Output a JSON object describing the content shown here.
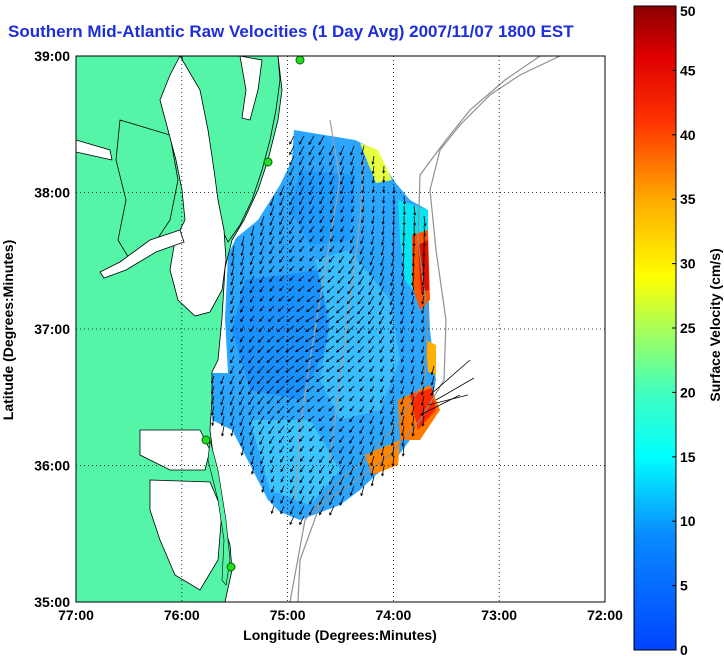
{
  "title": "Southern Mid-Atlantic Raw Velocities (1 Day Avg) 2007/11/07 1800 EST",
  "map": {
    "xlabel": "Longitude (Degrees:Minutes)",
    "ylabel": "Latitude (Degrees:Minutes)",
    "x_ticks": [
      "77:00",
      "76:00",
      "75:00",
      "74:00",
      "73:00",
      "72:00"
    ],
    "y_ticks": [
      "39:00",
      "38:00",
      "37:00",
      "36:00",
      "35:00"
    ],
    "lon_range": [
      -77,
      -72
    ],
    "lat_range": [
      35,
      39
    ],
    "grid": true,
    "land_color": "#55f5a8",
    "station_color": "#22dd22"
  },
  "colorbar": {
    "label": "Surface Velocity (cm/s)",
    "ticks": [
      "0",
      "5",
      "10",
      "15",
      "20",
      "25",
      "30",
      "35",
      "40",
      "45",
      "50"
    ],
    "min": 0,
    "max": 50
  }
}
